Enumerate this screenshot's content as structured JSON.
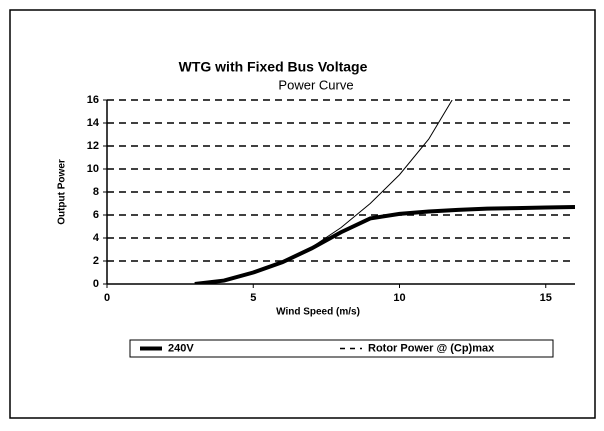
{
  "chart_data": {
    "type": "line",
    "title": "WTG with Fixed Bus Voltage",
    "subtitle": "Power Curve",
    "x_label": "Wind Speed (m/s)",
    "y_label": "Output Power",
    "xlim": [
      0,
      16
    ],
    "xticks": [
      0,
      5,
      10,
      15
    ],
    "ylim": [
      0,
      16
    ],
    "yticks": [
      0,
      2,
      4,
      6,
      8,
      10,
      12,
      14,
      16
    ],
    "grid": true,
    "series": [
      {
        "name": "240V",
        "color": "#000000",
        "width": 4,
        "dash": false,
        "x": [
          3,
          4,
          5,
          6,
          7,
          8,
          9,
          10,
          11,
          12,
          13,
          14,
          15,
          16
        ],
        "values": [
          0,
          0.3,
          1.0,
          1.9,
          3.1,
          4.5,
          5.7,
          6.1,
          6.3,
          6.45,
          6.55,
          6.6,
          6.65,
          6.7
        ]
      },
      {
        "name": "Rotor Power @ (Cp)max",
        "color": "#000000",
        "width": 1,
        "dash": true,
        "x": [
          3,
          4,
          5,
          6,
          7,
          8,
          9,
          10,
          11,
          11.8
        ],
        "values": [
          0,
          0.35,
          1.0,
          1.95,
          3.2,
          4.9,
          7.0,
          9.5,
          12.6,
          16
        ]
      }
    ]
  }
}
